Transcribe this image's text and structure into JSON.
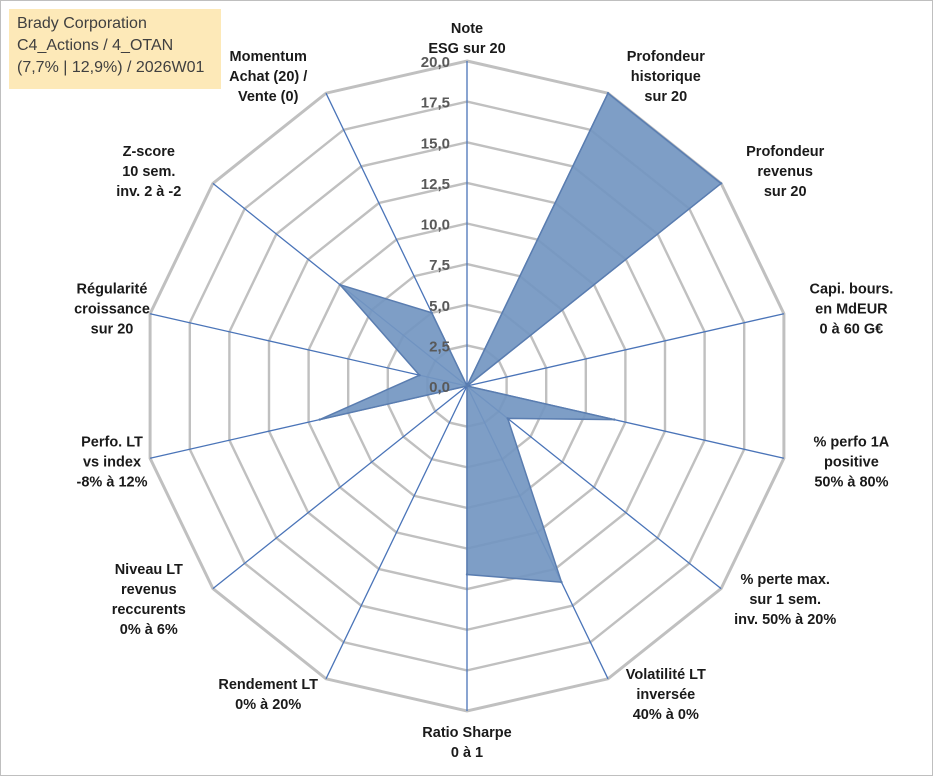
{
  "info_box": {
    "line1": "Brady Corporation",
    "line2": "C4_Actions / 4_OTAN",
    "line3": "(7,7% | 12,9%) / 2026W01"
  },
  "chart_data": {
    "type": "radar",
    "title": "",
    "range": [
      0,
      20
    ],
    "tick_step": 2.5,
    "ticks": [
      "0,0",
      "2,5",
      "5,0",
      "7,5",
      "10,0",
      "12,5",
      "15,0",
      "17,5",
      "20,0"
    ],
    "grid": true,
    "colors": {
      "fill": "#7396c1",
      "stroke": "#5a7db0",
      "spoke": "#4a74b8",
      "grid": "#c0c0c0"
    },
    "axes": [
      {
        "label": [
          "Note",
          "ESG sur 20"
        ],
        "value": 0
      },
      {
        "label": [
          "Profondeur",
          "historique",
          "sur 20"
        ],
        "value": 20
      },
      {
        "label": [
          "Profondeur",
          "revenus",
          "sur 20"
        ],
        "value": 20
      },
      {
        "label": [
          "Capi. bours.",
          "en MdEUR",
          "0 à 60 G€"
        ],
        "value": 0
      },
      {
        "label": [
          "% perfo 1A",
          "positive",
          "50% à 80%"
        ],
        "value": 9.3
      },
      {
        "label": [
          "% perte max.",
          "sur 1 sem.",
          "inv. 50% à 20%"
        ],
        "value": 3.2
      },
      {
        "label": [
          "Volatilité LT",
          "inversée",
          "40% à 0%"
        ],
        "value": 13.4
      },
      {
        "label": [
          "Ratio Sharpe",
          "0 à 1"
        ],
        "value": 11.6
      },
      {
        "label": [
          "Rendement LT",
          "0% à 20%"
        ],
        "value": 0
      },
      {
        "label": [
          "Niveau LT",
          "revenus",
          "reccurents",
          "0% à 6%"
        ],
        "value": 0
      },
      {
        "label": [
          "Perfo. LT",
          "vs index",
          "-8% à 12%"
        ],
        "value": 9.3
      },
      {
        "label": [
          "Régularité",
          "croissance",
          "sur 20"
        ],
        "value": 3.0
      },
      {
        "label": [
          "Z-score",
          "10 sem.",
          "inv. 2 à -2"
        ],
        "value": 10.0
      },
      {
        "label": [
          "Momentum",
          "Achat (20) /",
          "Vente (0)"
        ],
        "value": 5.0
      }
    ]
  }
}
